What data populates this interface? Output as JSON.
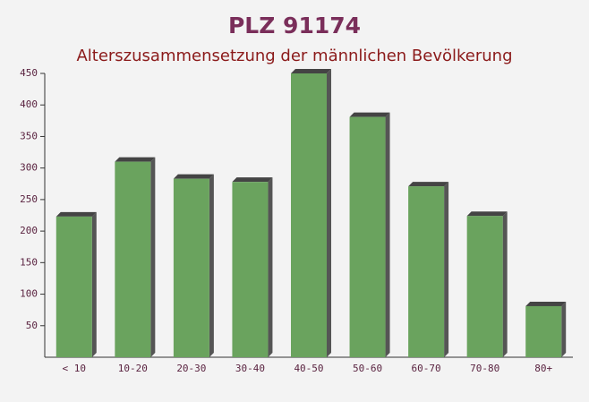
{
  "chart_data": {
    "type": "bar",
    "title": "PLZ 91174",
    "subtitle": "Alterszusammensetzung der männlichen Bevölkerung",
    "categories": [
      "< 10",
      "10-20",
      "20-30",
      "30-40",
      "40-50",
      "50-60",
      "60-70",
      "70-80",
      "80+"
    ],
    "values": [
      223,
      310,
      283,
      278,
      450,
      381,
      271,
      224,
      81
    ],
    "color": "#6aa35e",
    "ylim": [
      0,
      450
    ],
    "yticks": [
      50,
      100,
      150,
      200,
      250,
      300,
      350,
      400,
      450
    ],
    "grid": false
  }
}
